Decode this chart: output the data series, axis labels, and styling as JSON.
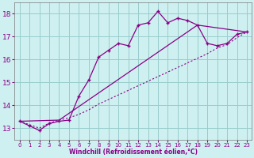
{
  "xlabel": "Windchill (Refroidissement éolien,°C)",
  "bg_color": "#cff0f0",
  "grid_color": "#99cccc",
  "line_color": "#880088",
  "xlim": [
    -0.5,
    23.5
  ],
  "ylim": [
    12.5,
    18.5
  ],
  "xticks": [
    0,
    1,
    2,
    3,
    4,
    5,
    6,
    7,
    8,
    9,
    10,
    11,
    12,
    13,
    14,
    15,
    16,
    17,
    18,
    19,
    20,
    21,
    22,
    23
  ],
  "yticks": [
    13,
    14,
    15,
    16,
    17,
    18
  ],
  "curve1_x": [
    0,
    1,
    2,
    3,
    4,
    5,
    6,
    7,
    8,
    9,
    10,
    11,
    12,
    13,
    14,
    15,
    16,
    17,
    18,
    19,
    20,
    21,
    22,
    23
  ],
  "curve1_y": [
    13.3,
    13.1,
    12.9,
    13.2,
    13.3,
    13.35,
    14.4,
    15.1,
    16.1,
    16.4,
    16.7,
    16.6,
    17.5,
    17.6,
    18.1,
    17.6,
    17.8,
    17.7,
    17.5,
    16.7,
    16.6,
    16.7,
    17.1,
    17.2
  ],
  "curve2_x": [
    0,
    1,
    2,
    3,
    4,
    5,
    6,
    7,
    8,
    9,
    10,
    11,
    12,
    13,
    14,
    15,
    16,
    17,
    18,
    19,
    20,
    21,
    22,
    23
  ],
  "curve2_y": [
    13.3,
    13.15,
    13.0,
    13.22,
    13.35,
    13.45,
    13.6,
    13.8,
    14.05,
    14.25,
    14.45,
    14.65,
    14.85,
    15.05,
    15.25,
    15.45,
    15.65,
    15.85,
    16.05,
    16.25,
    16.5,
    16.65,
    16.95,
    17.2
  ],
  "curve3_x": [
    0,
    4,
    18,
    23
  ],
  "curve3_y": [
    13.3,
    13.35,
    17.5,
    17.2
  ]
}
